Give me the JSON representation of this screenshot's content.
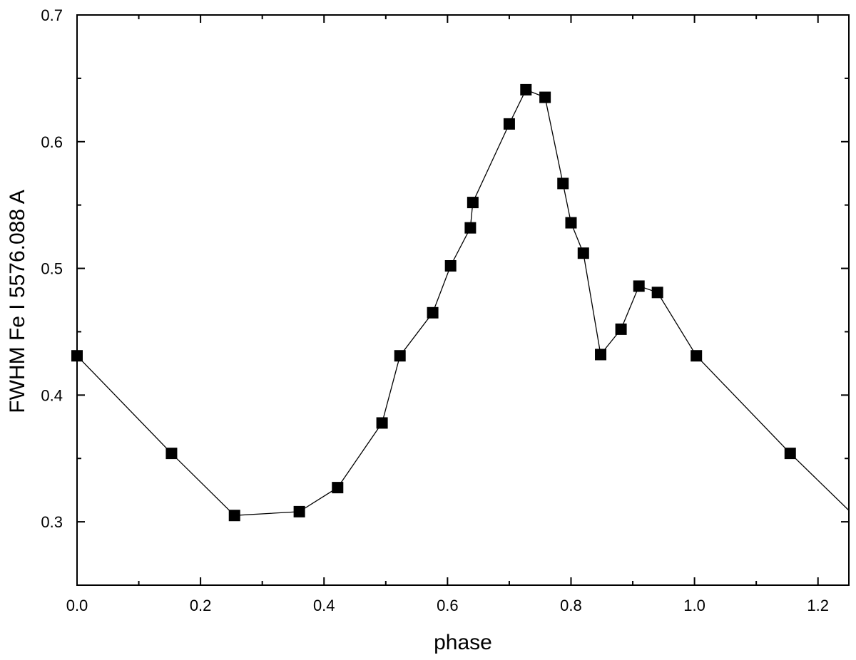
{
  "chart_data": {
    "type": "line",
    "title": "",
    "xlabel": "phase",
    "ylabel": "FWHM Fe I  5576.088   A",
    "xlim": [
      0.0,
      1.25
    ],
    "ylim": [
      0.25,
      0.7
    ],
    "x_ticks": [
      0.0,
      0.2,
      0.4,
      0.6,
      0.8,
      1.0,
      1.2
    ],
    "x_tick_labels": [
      "0.0",
      "0.2",
      "0.4",
      "0.6",
      "0.8",
      "1.0",
      "1.2"
    ],
    "y_ticks": [
      0.3,
      0.4,
      0.5,
      0.6,
      0.7
    ],
    "y_tick_labels": [
      "0.3",
      "0.4",
      "0.5",
      "0.6",
      "0.7"
    ],
    "grid": false,
    "marker": "square",
    "series": [
      {
        "x": [
          0.0,
          0.153,
          0.255,
          0.36,
          0.422,
          0.494,
          0.523,
          0.576,
          0.605,
          0.637,
          0.641,
          0.7,
          0.727,
          0.758,
          0.787,
          0.8,
          0.82,
          0.848,
          0.881,
          0.91,
          0.94,
          1.003,
          1.155,
          1.25
        ],
        "y": [
          0.431,
          0.354,
          0.305,
          0.308,
          0.327,
          0.378,
          0.431,
          0.465,
          0.502,
          0.532,
          0.552,
          0.614,
          0.641,
          0.635,
          0.567,
          0.536,
          0.512,
          0.432,
          0.452,
          0.486,
          0.481,
          0.431,
          0.354,
          0.309
        ],
        "marker_shown": [
          true,
          true,
          true,
          true,
          true,
          true,
          true,
          true,
          true,
          true,
          true,
          true,
          true,
          true,
          true,
          true,
          true,
          true,
          true,
          true,
          true,
          true,
          true,
          false
        ]
      }
    ]
  }
}
